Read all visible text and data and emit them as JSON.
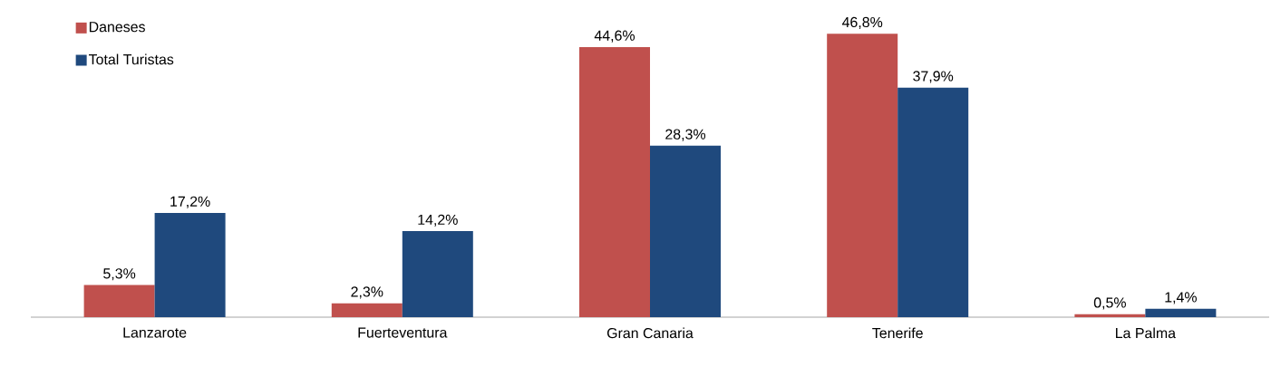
{
  "chart_data": {
    "type": "bar",
    "categories": [
      "Lanzarote",
      "Fuerteventura",
      "Gran Canaria",
      "Tenerife",
      "La Palma"
    ],
    "series": [
      {
        "name": "Daneses",
        "color": "#c0504d",
        "values": [
          5.3,
          2.3,
          44.6,
          46.8,
          0.5
        ],
        "value_labels": [
          "5,3%",
          "2,3%",
          "44,6%",
          "46,8%",
          "0,5%"
        ]
      },
      {
        "name": "Total Turistas",
        "color": "#1f497d",
        "values": [
          17.2,
          14.2,
          28.3,
          37.9,
          1.4
        ],
        "value_labels": [
          "17,2%",
          "14,2%",
          "28,3%",
          "37,9%",
          "1,4%"
        ]
      }
    ],
    "legend": "top left"
  }
}
